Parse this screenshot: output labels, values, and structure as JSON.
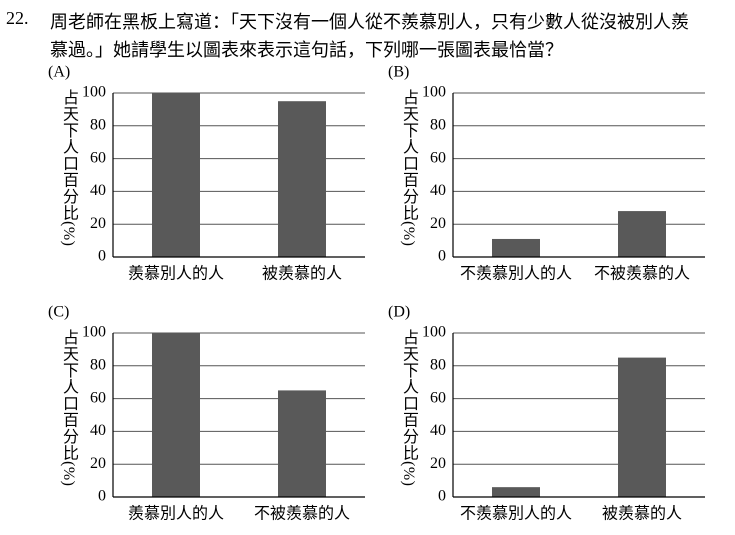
{
  "question": {
    "number": "22.",
    "lines": [
      "周老師在黑板上寫道：「天下沒有一個人從不羨慕別人，只有少數人從沒被別人羨",
      "慕過。」她請學生以圖表來表示這句話，下列哪一張圖表最恰當？"
    ]
  },
  "chart_data": [
    {
      "type": "bar",
      "label": "(A)",
      "y_label": "占天下人口百分比(%)",
      "categories": [
        "羨慕別人的人",
        "被羨慕的人"
      ],
      "values": [
        100,
        95
      ],
      "color": "#595959",
      "ylim": [
        0,
        100
      ],
      "yticks": [
        0,
        20,
        40,
        60,
        80,
        100
      ],
      "grid": true
    },
    {
      "type": "bar",
      "label": "(B)",
      "y_label": "占天下人口百分比(%)",
      "categories": [
        "不羨慕別人的人",
        "不被羨慕的人"
      ],
      "values": [
        11,
        28
      ],
      "color": "#595959",
      "ylim": [
        0,
        100
      ],
      "yticks": [
        0,
        20,
        40,
        60,
        80,
        100
      ],
      "grid": true
    },
    {
      "type": "bar",
      "label": "(C)",
      "y_label": "占天下人口百分比(%)",
      "categories": [
        "羨慕別人的人",
        "不被羨慕的人"
      ],
      "values": [
        100,
        65
      ],
      "color": "#595959",
      "ylim": [
        0,
        100
      ],
      "yticks": [
        0,
        20,
        40,
        60,
        80,
        100
      ],
      "grid": true
    },
    {
      "type": "bar",
      "label": "(D)",
      "y_label": "占天下人口百分比(%)",
      "categories": [
        "不羨慕別人的人",
        "被羨慕的人"
      ],
      "values": [
        6,
        85
      ],
      "color": "#595959",
      "ylim": [
        0,
        100
      ],
      "yticks": [
        0,
        20,
        40,
        60,
        80,
        100
      ],
      "grid": true
    }
  ]
}
